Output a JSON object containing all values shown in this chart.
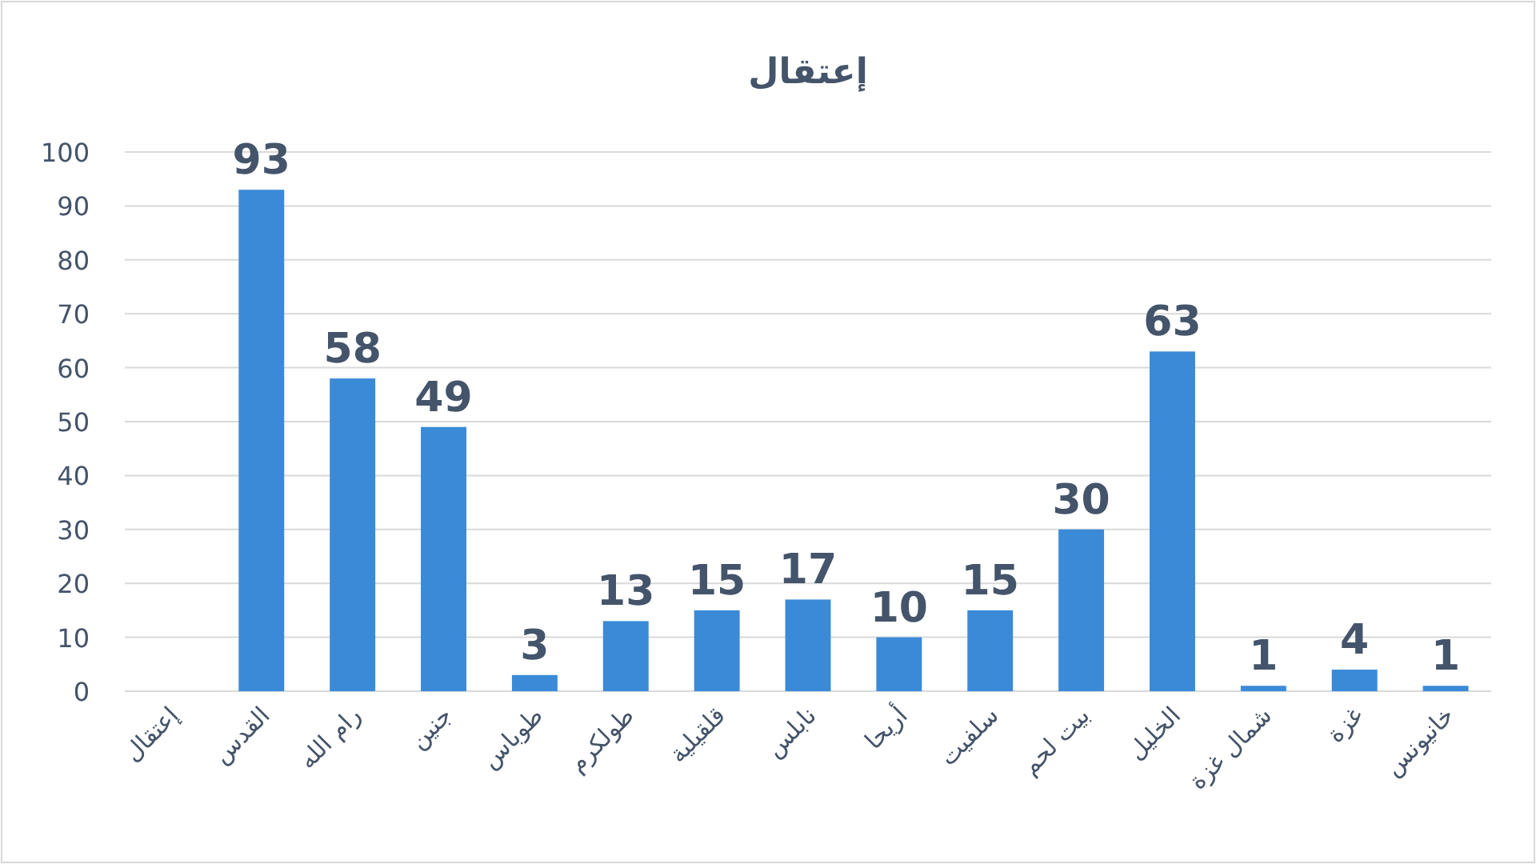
{
  "chart_data": {
    "type": "bar",
    "title": "إعتقال",
    "categories": [
      "إعتقال",
      "القدس",
      "رام الله",
      "جنين",
      "طوباس",
      "طولكرم",
      "قلقيلية",
      "نابلس",
      "أريحا",
      "سلفيت",
      "بيت لحم",
      "الخليل",
      "شمال غزة",
      "غزة",
      "خانيونس"
    ],
    "values": [
      null,
      93,
      58,
      49,
      3,
      13,
      15,
      17,
      10,
      15,
      30,
      63,
      1,
      4,
      1
    ],
    "color": "#3b8ad8",
    "ylim": [
      0,
      100
    ],
    "yticks": [
      0,
      10,
      20,
      30,
      40,
      50,
      60,
      70,
      80,
      90,
      100
    ],
    "grid": "y",
    "data_labels": true
  }
}
